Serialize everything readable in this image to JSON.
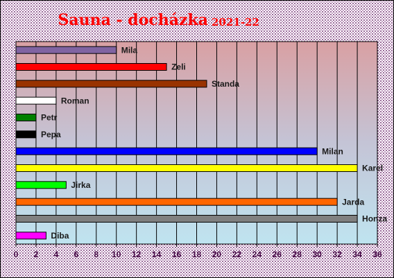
{
  "chart_data": {
    "type": "hbar",
    "title": "Sauna - docházka",
    "subtitle": "2021-22",
    "categories": [
      "Mila",
      "Zeli",
      "Standa",
      "Roman",
      "Petr",
      "Pepa",
      "Milan",
      "Karel",
      "Jirka",
      "Jarda",
      "Honza",
      "Diba"
    ],
    "values": [
      10,
      15,
      19,
      4,
      2,
      2,
      30,
      34,
      5,
      32,
      34,
      3
    ],
    "colors": [
      "#8064a2",
      "#ff0000",
      "#993300",
      "#ffffff",
      "#008000",
      "#000000",
      "#0000ff",
      "#ffff00",
      "#00ff00",
      "#ff6600",
      "#808080",
      "#ff00ff"
    ],
    "xlim": [
      0,
      36
    ],
    "xticks": [
      0,
      2,
      4,
      6,
      8,
      10,
      12,
      14,
      16,
      18,
      20,
      22,
      24,
      26,
      28,
      30,
      32,
      34,
      36
    ],
    "grid": true
  }
}
